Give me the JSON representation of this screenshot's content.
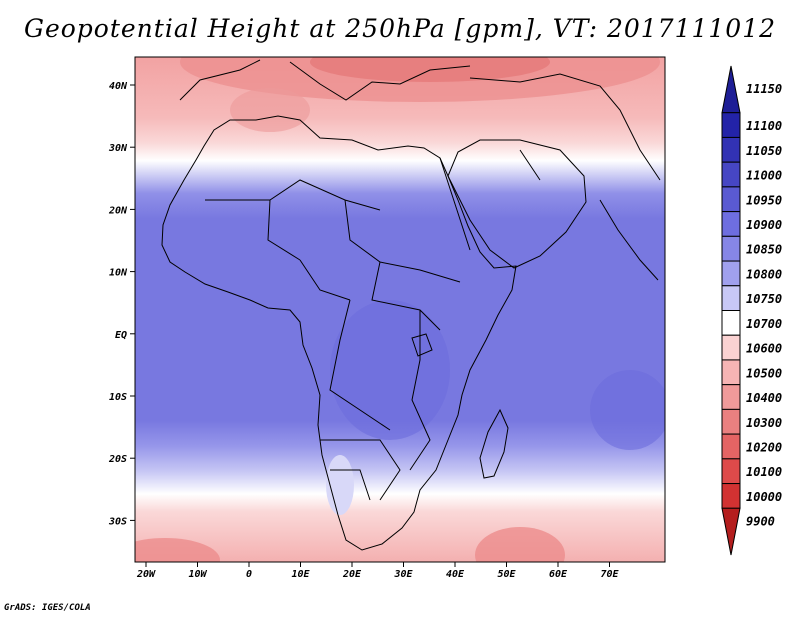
{
  "title": "Geopotential Height at 250hPa [gpm], VT: 2017111012",
  "credit": "GrADS: IGES/COLA",
  "axes": {
    "lat_labels": [
      "40N",
      "30N",
      "20N",
      "10N",
      "EQ",
      "10S",
      "20S",
      "30S"
    ],
    "lon_labels": [
      "20W",
      "10W",
      "0",
      "10E",
      "20E",
      "30E",
      "40E",
      "50E",
      "60E",
      "70E"
    ]
  },
  "colorbar": {
    "levels": [
      "11150",
      "11100",
      "11050",
      "11000",
      "10950",
      "10900",
      "10850",
      "10800",
      "10750",
      "10700",
      "10600",
      "10500",
      "10400",
      "10300",
      "10200",
      "10100",
      "10000",
      "9900"
    ],
    "colors": [
      "#1e1e96",
      "#2323a8",
      "#3232b4",
      "#4646c4",
      "#5a5ad2",
      "#6e6ee0",
      "#8686e6",
      "#a0a0ee",
      "#c8c8f6",
      "#ffffff",
      "#fad2d2",
      "#f6b4b4",
      "#f09a9a",
      "#ea8080",
      "#e46464",
      "#de4a4a",
      "#d23232",
      "#b41e1e"
    ]
  }
}
